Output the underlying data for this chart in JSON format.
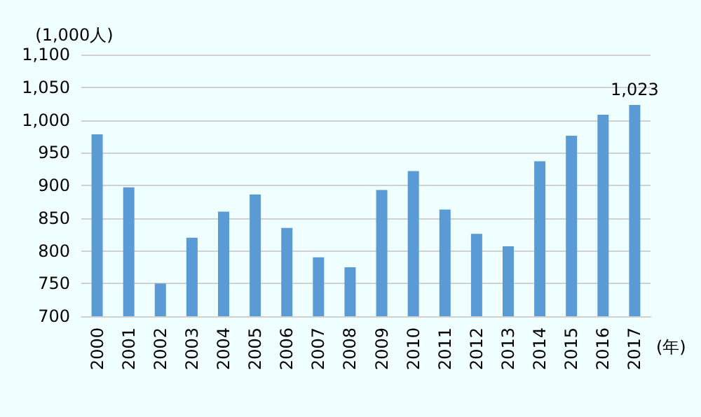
{
  "chart_data": {
    "type": "bar",
    "ylabel": "(1,000人)",
    "xlabel": "(年)",
    "categories": [
      "2000",
      "2001",
      "2002",
      "2003",
      "2004",
      "2005",
      "2006",
      "2007",
      "2008",
      "2009",
      "2010",
      "2011",
      "2012",
      "2013",
      "2014",
      "2015",
      "2016",
      "2017"
    ],
    "values": [
      978,
      897,
      750,
      820,
      860,
      886,
      835,
      790,
      775,
      893,
      922,
      863,
      826,
      807,
      937,
      976,
      1008,
      1023
    ],
    "value_labels": [
      null,
      null,
      null,
      null,
      null,
      null,
      null,
      null,
      null,
      null,
      null,
      null,
      null,
      null,
      null,
      null,
      null,
      "1,023"
    ],
    "color": "#5b9bd5",
    "ylim": [
      700,
      1100
    ],
    "yticks": [
      700,
      750,
      800,
      850,
      900,
      950,
      {
        "value": 1000,
        "label": "1,000"
      },
      {
        "value": 1050,
        "label": "1,050"
      },
      {
        "value": 1100,
        "label": "1,100"
      }
    ],
    "grid": "y"
  }
}
